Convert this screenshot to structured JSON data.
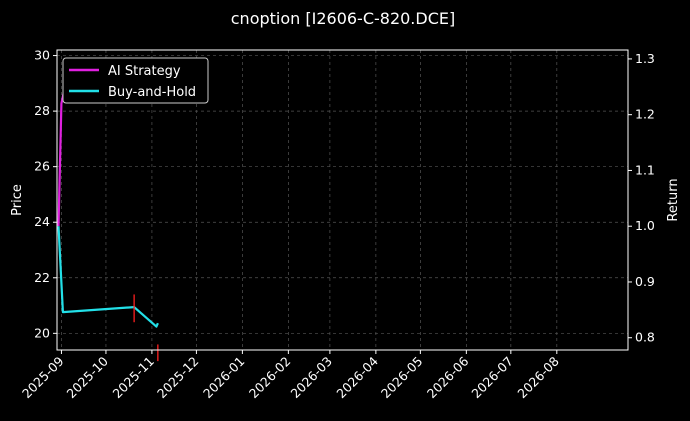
{
  "chart_data": {
    "type": "line",
    "title": "cnoption [I2606-C-820.DCE]",
    "ylabel_left": "Price",
    "ylabel_right": "Return",
    "xlim": [
      "2025-08-29",
      "2026-09-18"
    ],
    "ylim_left": [
      19.4,
      30.2
    ],
    "ylim_right": [
      0.778,
      1.316
    ],
    "x_ticks": [
      "2025-09",
      "2025-10",
      "2025-11",
      "2025-12",
      "2026-01",
      "2026-02",
      "2026-03",
      "2026-04",
      "2026-05",
      "2026-06",
      "2026-07",
      "2026-08"
    ],
    "y_ticks_left": [
      20,
      22,
      24,
      26,
      28,
      30
    ],
    "y_ticks_right": [
      0.8,
      0.9,
      1.0,
      1.1,
      1.2,
      1.3
    ],
    "grid": true,
    "legend_position": "top-left",
    "series": [
      {
        "name": "AI Strategy",
        "color": "#e020e0",
        "axis": "right",
        "points": [
          {
            "x": "2025-08-30",
            "y": 1.0
          },
          {
            "x": "2025-09-01",
            "y": 1.22
          },
          {
            "x": "2025-09-03",
            "y": 1.245
          },
          {
            "x": "2025-09-04",
            "y": 1.238
          },
          {
            "x": "2025-10-20",
            "y": 1.238
          },
          {
            "x": "2025-10-22",
            "y": 1.244
          }
        ]
      },
      {
        "name": "Buy-and-Hold",
        "color": "#22e0e8",
        "axis": "right",
        "points": [
          {
            "x": "2025-08-30",
            "y": 1.0
          },
          {
            "x": "2025-09-02",
            "y": 0.846
          },
          {
            "x": "2025-10-20",
            "y": 0.855
          },
          {
            "x": "2025-11-04",
            "y": 0.82
          },
          {
            "x": "2025-11-05",
            "y": 0.826
          }
        ]
      }
    ],
    "signal_markers": [
      {
        "x": "2025-10-20",
        "y_from": 20.4,
        "y_to": 21.4,
        "color": "#ff2020"
      },
      {
        "x": "2025-11-05",
        "y_from": 19.0,
        "y_to": 19.6,
        "color": "#ff2020"
      }
    ]
  }
}
